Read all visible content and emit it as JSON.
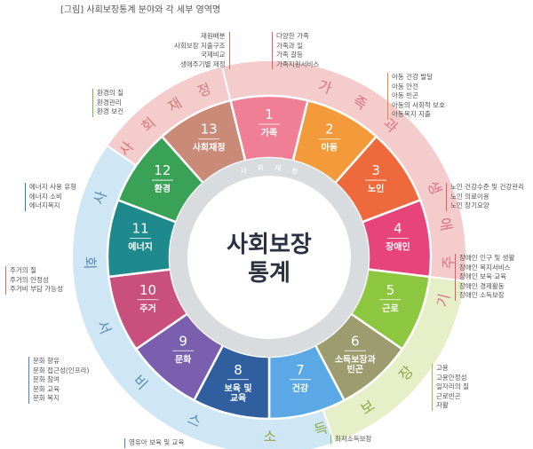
{
  "caption": "[그림] 사회보장통계 분야와 각 세부 영역명",
  "center": {
    "line1": "사회보장",
    "line2": "통계"
  },
  "inner_ring_label": "사회재정",
  "groups": [
    {
      "label": "사회재정",
      "color": "#f4cccc"
    },
    {
      "label": "가족과 생애주기",
      "color": "#f4cccc"
    },
    {
      "label": "사회서비스",
      "color": "#cfe6f4"
    },
    {
      "label": "소득보장",
      "color": "#e6f0c8"
    }
  ],
  "sectors": [
    {
      "num": "1",
      "name": "가족",
      "color": "#f07f95"
    },
    {
      "num": "2",
      "name": "아동",
      "color": "#f39a3a"
    },
    {
      "num": "3",
      "name": "노인",
      "color": "#ee6a3c"
    },
    {
      "num": "4",
      "name": "장애인",
      "color": "#e6447a"
    },
    {
      "num": "5",
      "name": "근로",
      "color": "#8dc63f"
    },
    {
      "num": "6",
      "name": "소득보장과 빈곤",
      "color": "#9c9c6e"
    },
    {
      "num": "7",
      "name": "건강",
      "color": "#5aa9e6"
    },
    {
      "num": "8",
      "name": "보육 및 교육",
      "color": "#2f5f9e"
    },
    {
      "num": "9",
      "name": "문화",
      "color": "#7a5fae"
    },
    {
      "num": "10",
      "name": "주거",
      "color": "#c94f7c"
    },
    {
      "num": "11",
      "name": "에너지",
      "color": "#1f8a8e"
    },
    {
      "num": "12",
      "name": "환경",
      "color": "#3aa256"
    },
    {
      "num": "13",
      "name": "사회재정",
      "color": "#c98a78"
    }
  ],
  "details": {
    "social_finance": [
      "재원배분",
      "사회보장 지출구조",
      "국제비교",
      "생애주기별 재정"
    ],
    "family": [
      "다양한 가족",
      "가족과 일",
      "가족 갈등",
      "가족지원서비스"
    ],
    "child": [
      "아동 건강 발달",
      "아동 안전",
      "아동 빈곤",
      "아동의 사회적 보호",
      "아동복지 지출"
    ],
    "elderly": [
      "노인 건강수준 및 건강관리",
      "노인 의료이용",
      "노인 장기요양"
    ],
    "disabled": [
      "장애인 인구 및 생활",
      "장애인 복지서비스",
      "장애인 보육·교육",
      "장애인 경제활동",
      "장애인 소득보장"
    ],
    "labor": [
      "고용",
      "고용안정성",
      "일자리의 질",
      "근로빈곤",
      "자활"
    ],
    "income": [
      "최저소득보장"
    ],
    "childcare": [
      "영유아 보육 및 교육"
    ],
    "culture": [
      "문화 향유",
      "문화 접근성(인프라)",
      "문화 참여",
      "문화 교육",
      "문화 복지"
    ],
    "housing": [
      "주거의 질",
      "주거의 안정성",
      "주거비 부담 가능성"
    ],
    "energy": [
      "에너지 사용 유형",
      "에너지 소비",
      "에너지복지"
    ],
    "environment": [
      "환경의 질",
      "환경관리",
      "환경 보건"
    ]
  }
}
